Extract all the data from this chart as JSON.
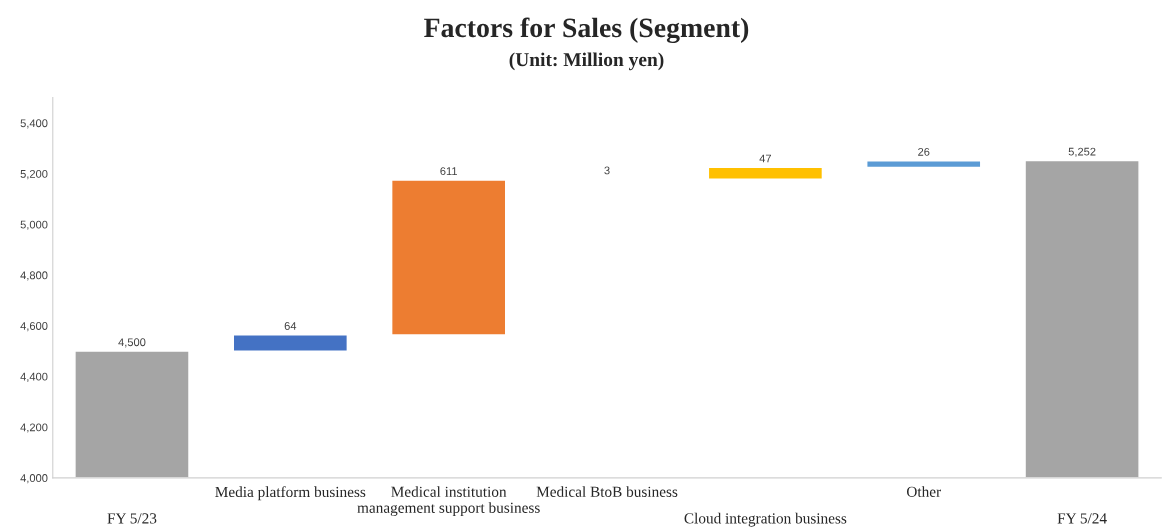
{
  "chart_data": {
    "type": "bar",
    "title": "Factors for Sales (Segment)",
    "subtitle": "(Unit: Million yen)",
    "categories": [
      "FY 5/23",
      "Media platform business",
      "Medical institution\nmanagement support business",
      "Medical BtoB business",
      "Cloud integration business",
      "Other",
      "FY 5/24"
    ],
    "values": [
      500,
      64,
      611,
      3,
      47,
      26,
      1252
    ],
    "base": [
      4000,
      4500,
      4564,
      5175,
      5178,
      5225,
      4000
    ],
    "colors": [
      "#a5a5a5",
      "#4472c4",
      "#ed7d31",
      "#70ad47",
      "#ffc000",
      "#5b9bd5",
      "#a5a5a5"
    ],
    "value_labels": [
      "4,500",
      "64",
      "611",
      "3",
      "47",
      "26",
      "5,252"
    ],
    "ylim": [
      4000,
      5500
    ],
    "yticks": [
      {
        "value": 4000,
        "label": "4,000"
      },
      {
        "value": 4200,
        "label": "4,200"
      },
      {
        "value": 4400,
        "label": "4,400"
      },
      {
        "value": 4600,
        "label": "4,600"
      },
      {
        "value": 4800,
        "label": "4,800"
      },
      {
        "value": 5000,
        "label": "5,000"
      },
      {
        "value": 5200,
        "label": "5,200"
      },
      {
        "value": 5400,
        "label": "5,400"
      }
    ],
    "grid": false,
    "legend": false
  }
}
